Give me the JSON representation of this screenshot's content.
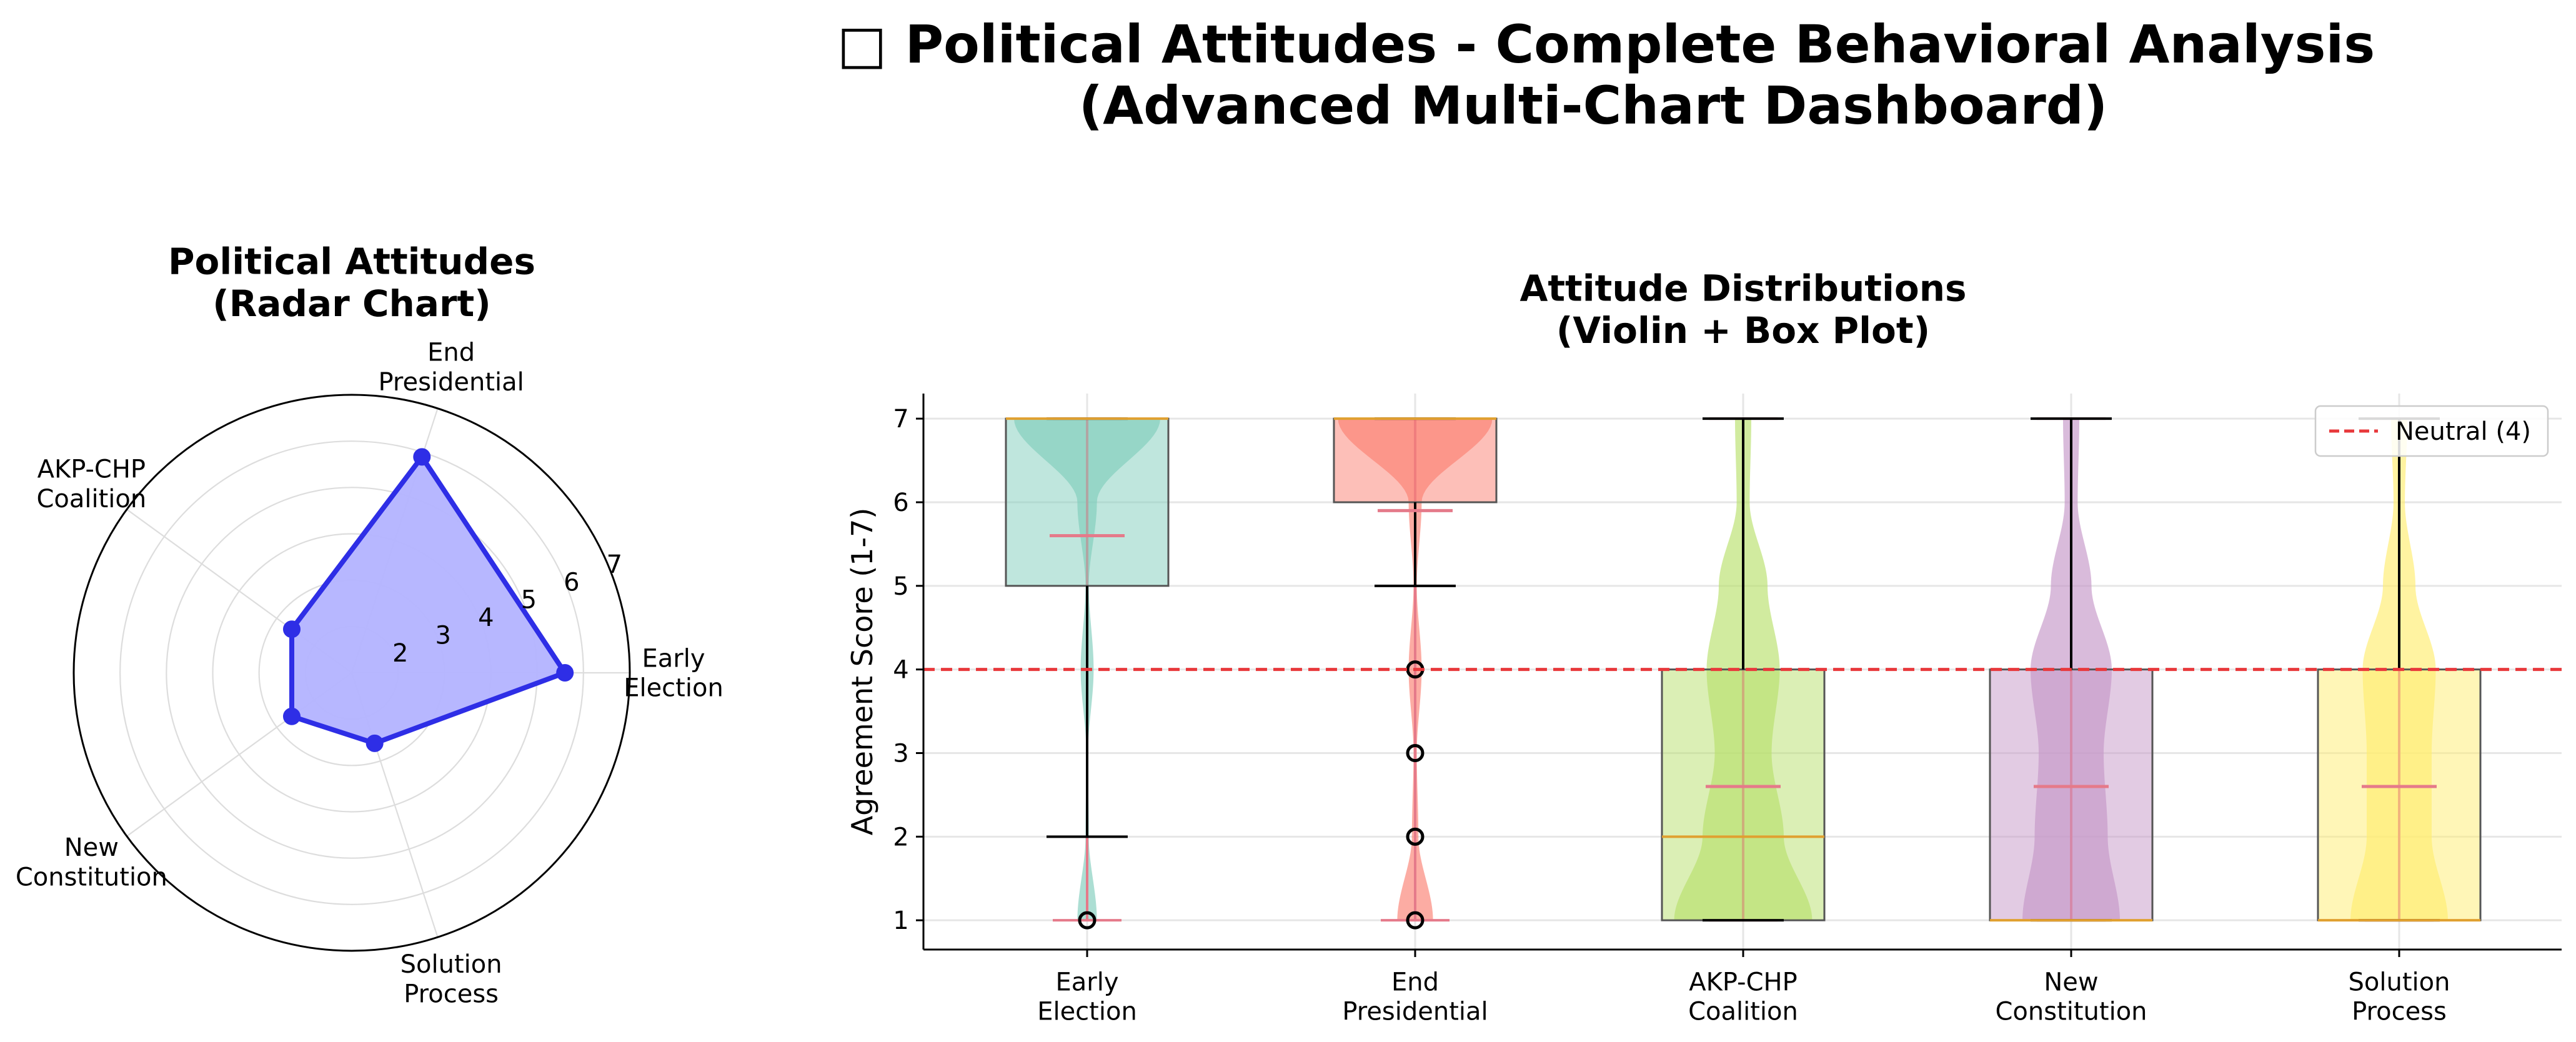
{
  "page": {
    "title_line1": "□ Political Attitudes - Complete Behavioral Analysis",
    "title_line2": "(Advanced Multi-Chart Dashboard)"
  },
  "colors": {
    "radar_fill": "#b3b3ff",
    "radar_line": "#2e2ee6",
    "neutral_line": "#e8383b",
    "median_line": "#e0a030",
    "mean_marker": "#e57a8a",
    "series": [
      "#7fcdbb",
      "#fb8072",
      "#b8e06b",
      "#c597c7",
      "#ffed6f"
    ]
  },
  "chart_data": [
    {
      "type": "radar",
      "title": "Political Attitudes\n(Radar Chart)",
      "categories": [
        "Early\nElection",
        "End\nPresidential",
        "AKP-CHP\nCoalition",
        "New\nConstitution",
        "Solution\nProcess"
      ],
      "values": [
        5.6,
        5.9,
        2.6,
        2.6,
        2.6
      ],
      "rticks": [
        "2",
        "3",
        "4",
        "5",
        "6",
        "7"
      ],
      "rlim": [
        1,
        7
      ],
      "grid": true
    },
    {
      "type": "violin+box",
      "title": "Attitude Distributions\n(Violin + Box Plot)",
      "xlabel": "",
      "ylabel": "Agreement Score (1-7)",
      "ylim": [
        0.65,
        7.3
      ],
      "yticks": [
        "1",
        "2",
        "3",
        "4",
        "5",
        "6",
        "7"
      ],
      "categories": [
        "Early\nElection",
        "End\nPresidential",
        "AKP-CHP\nCoalition",
        "New\nConstitution",
        "Solution\nProcess"
      ],
      "box": [
        {
          "q1": 5,
          "median": 7,
          "q3": 7,
          "whisker_low": 2,
          "whisker_high": 7,
          "mean": 5.6,
          "outliers": [
            1
          ]
        },
        {
          "q1": 6,
          "median": 7,
          "q3": 7,
          "whisker_low": 5,
          "whisker_high": 7,
          "mean": 5.9,
          "outliers": [
            4,
            3,
            2,
            1
          ]
        },
        {
          "q1": 1,
          "median": 2,
          "q3": 4,
          "whisker_low": 1,
          "whisker_high": 7,
          "mean": 2.6,
          "outliers": []
        },
        {
          "q1": 1,
          "median": 1,
          "q3": 4,
          "whisker_low": 1,
          "whisker_high": 7,
          "mean": 2.6,
          "outliers": []
        },
        {
          "q1": 1,
          "median": 1,
          "q3": 4,
          "whisker_low": 1,
          "whisker_high": 7,
          "mean": 2.6,
          "outliers": []
        }
      ],
      "violin_density": [
        [
          0.12,
          0.02,
          0.01,
          0.08,
          0.02,
          0.12,
          0.9
        ],
        [
          0.22,
          0.04,
          0.02,
          0.08,
          0.02,
          0.08,
          0.95
        ],
        [
          0.85,
          0.5,
          0.35,
          0.45,
          0.3,
          0.08,
          0.1
        ],
        [
          0.6,
          0.45,
          0.4,
          0.5,
          0.25,
          0.08,
          0.1
        ],
        [
          0.6,
          0.4,
          0.4,
          0.45,
          0.2,
          0.07,
          0.1
        ]
      ],
      "reference_line": {
        "y": 4,
        "label": "Neutral (4)"
      },
      "legend": "top-right",
      "grid": true
    }
  ]
}
